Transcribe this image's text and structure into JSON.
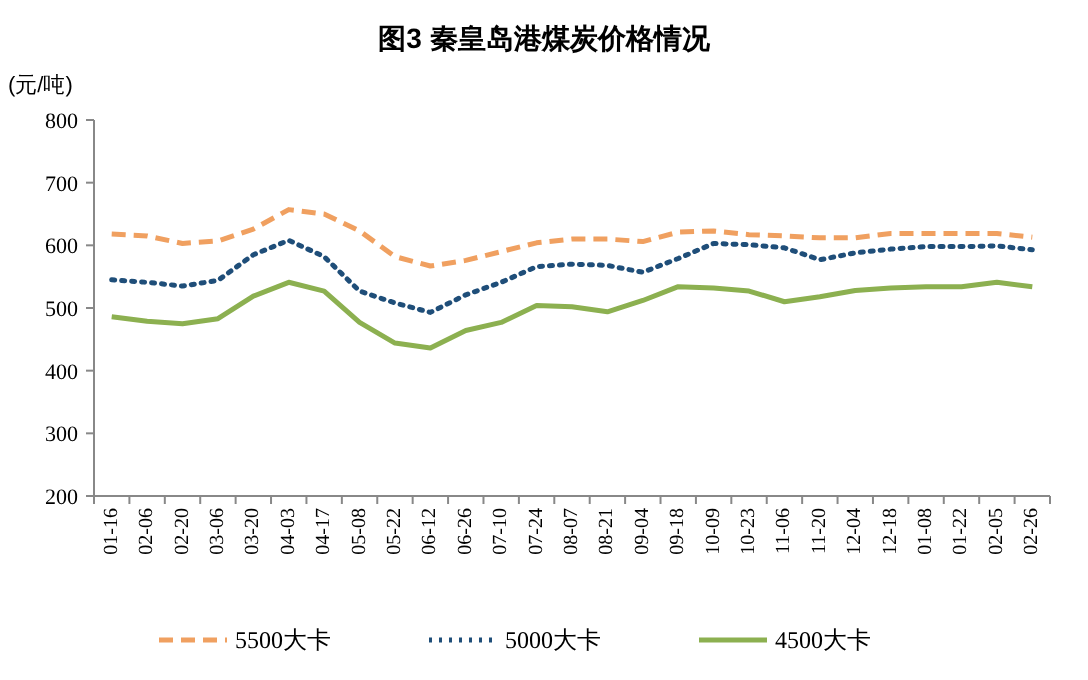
{
  "chart_data": {
    "type": "line",
    "title": "图3 秦皇岛港煤炭价格情况",
    "ylabel": "(元/吨)",
    "categories": [
      "01-16",
      "02-06",
      "02-20",
      "03-06",
      "03-20",
      "04-03",
      "04-17",
      "05-08",
      "05-22",
      "06-12",
      "06-26",
      "07-10",
      "07-24",
      "08-07",
      "08-21",
      "09-04",
      "09-18",
      "10-09",
      "10-23",
      "11-06",
      "11-20",
      "12-04",
      "12-18",
      "01-08",
      "01-22",
      "02-05",
      "02-26"
    ],
    "ylim": [
      200,
      800
    ],
    "yticks": [
      200,
      300,
      400,
      500,
      600,
      700,
      800
    ],
    "grid": false,
    "legend": "bottom",
    "marker": "none",
    "series": [
      {
        "name": "5500大卡",
        "color": "#f0a060",
        "line_style": "dashed",
        "values": [
          618,
          615,
          603,
          607,
          626,
          657,
          650,
          623,
          582,
          567,
          576,
          590,
          604,
          610,
          610,
          606,
          621,
          623,
          617,
          615,
          612,
          612,
          619,
          619,
          619,
          619,
          613
        ]
      },
      {
        "name": "5000大卡",
        "color": "#1f4e79",
        "line_style": "dotted",
        "values": [
          545,
          541,
          535,
          544,
          585,
          608,
          582,
          527,
          508,
          493,
          521,
          541,
          566,
          570,
          568,
          557,
          579,
          603,
          601,
          596,
          577,
          588,
          594,
          598,
          598,
          599,
          593
        ]
      },
      {
        "name": "4500大卡",
        "color": "#8cb050",
        "line_style": "solid",
        "values": [
          486,
          479,
          475,
          483,
          519,
          541,
          527,
          477,
          444,
          436,
          464,
          477,
          504,
          502,
          494,
          512,
          534,
          532,
          527,
          510,
          518,
          528,
          532,
          534,
          534,
          541,
          534
        ]
      }
    ]
  }
}
